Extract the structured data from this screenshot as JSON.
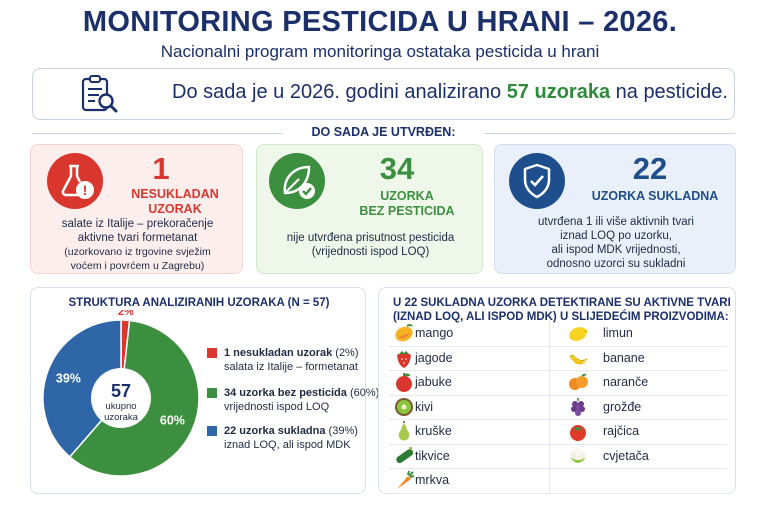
{
  "header": {
    "title": "MONITORING PESTICIDA U HRANI – 2026.",
    "subtitle": "Nacionalni program monitoringa ostataka pesticida u hrani"
  },
  "summary": {
    "text_before": "Do sada je u 2026. godini analizirano ",
    "highlight": "57 uzoraka",
    "text_after": " na pesticide.",
    "icon": "clipboard-search-icon"
  },
  "section_label": "DO SADA JE UTVRĐEN:",
  "cards": {
    "noncompliant": {
      "number": "1",
      "heading_line1": "NESUKLADAN",
      "heading_line2": "UZORAK",
      "desc_line1": "salate iz Italije – prekoračenje",
      "desc_line2": "aktivne tvari formetanat",
      "desc_line3": "(uzorkovano iz trgovine svježim",
      "desc_line4": "voćem i povrćem u Zagrebu)",
      "icon": "flask-warning-icon",
      "color": "#d9372e"
    },
    "no_pesticides": {
      "number": "34",
      "heading_line1": "UZORKA",
      "heading_line2": "BEZ PESTICIDA",
      "desc_line1": "nije utvrđena prisutnost pesticida",
      "desc_line2": "(vrijednosti ispod LOQ)",
      "icon": "leaf-check-icon",
      "color": "#3b8f3e"
    },
    "compliant": {
      "number": "22",
      "heading": "UZORKA SUKLADNA",
      "desc_line1": "utvrđena 1 ili više aktivnih tvari",
      "desc_line2": "iznad LOQ po uzorku,",
      "desc_line3": "ali ispod MDK vrijednosti,",
      "desc_line4": "odnosno uzorci su sukladni",
      "icon": "shield-check-icon",
      "color": "#1f4e8c"
    }
  },
  "pie_panel": {
    "title": "STRUKTURA ANALIZIRANIH UZORAKA (N = 57)",
    "center_number": "57",
    "center_line1": "ukupno",
    "center_line2": "uzoraka",
    "legend": [
      {
        "bold": "1 nesukladan uzorak",
        "rest": " (2%)",
        "line2": "salata iz Italije – formetanat"
      },
      {
        "bold": "34 uzorka bez pesticida",
        "rest": " (60%)",
        "line2": "vrijednosti ispod LOQ"
      },
      {
        "bold": "22 uzorka sukladna",
        "rest": " (39%)",
        "line2": "iznad LOQ, ali ispod MDK"
      }
    ]
  },
  "chart_data": {
    "type": "pie",
    "title": "STRUKTURA ANALIZIRANIH UZORAKA (N = 57)",
    "labels": [
      "1 nesukladan uzorak",
      "34 uzorka bez pesticida",
      "22 uzorka sukladna"
    ],
    "values": [
      1,
      34,
      22
    ],
    "percent_labels": [
      "2%",
      "60%",
      "39%"
    ],
    "colors": [
      "#d9372e",
      "#3b8f3e",
      "#2f66a8"
    ],
    "legend_position": "right"
  },
  "products": {
    "title_line1": "U 22 SUKLADNA UZORKA DETEKTIRANE SU AKTIVNE TVARI",
    "title_line2": "(IZNAD LOQ, ALI ISPOD MDK) U SLIJEDEĆIM PROIZVODIMA:",
    "left": [
      {
        "label": "mango",
        "icon": "mango-icon"
      },
      {
        "label": "jagode",
        "icon": "strawberry-icon"
      },
      {
        "label": "jabuke",
        "icon": "apple-icon"
      },
      {
        "label": "kivi",
        "icon": "kiwi-icon"
      },
      {
        "label": "kruške",
        "icon": "pear-icon"
      },
      {
        "label": "tikvice",
        "icon": "zucchini-icon"
      },
      {
        "label": "mrkva",
        "icon": "carrot-icon"
      }
    ],
    "right": [
      {
        "label": "limun",
        "icon": "lemon-icon"
      },
      {
        "label": "banane",
        "icon": "banana-icon"
      },
      {
        "label": "naranče",
        "icon": "orange-icon"
      },
      {
        "label": "grožđe",
        "icon": "grapes-icon"
      },
      {
        "label": "rajčica",
        "icon": "tomato-icon"
      },
      {
        "label": "cvjetača",
        "icon": "cauliflower-icon"
      }
    ]
  }
}
